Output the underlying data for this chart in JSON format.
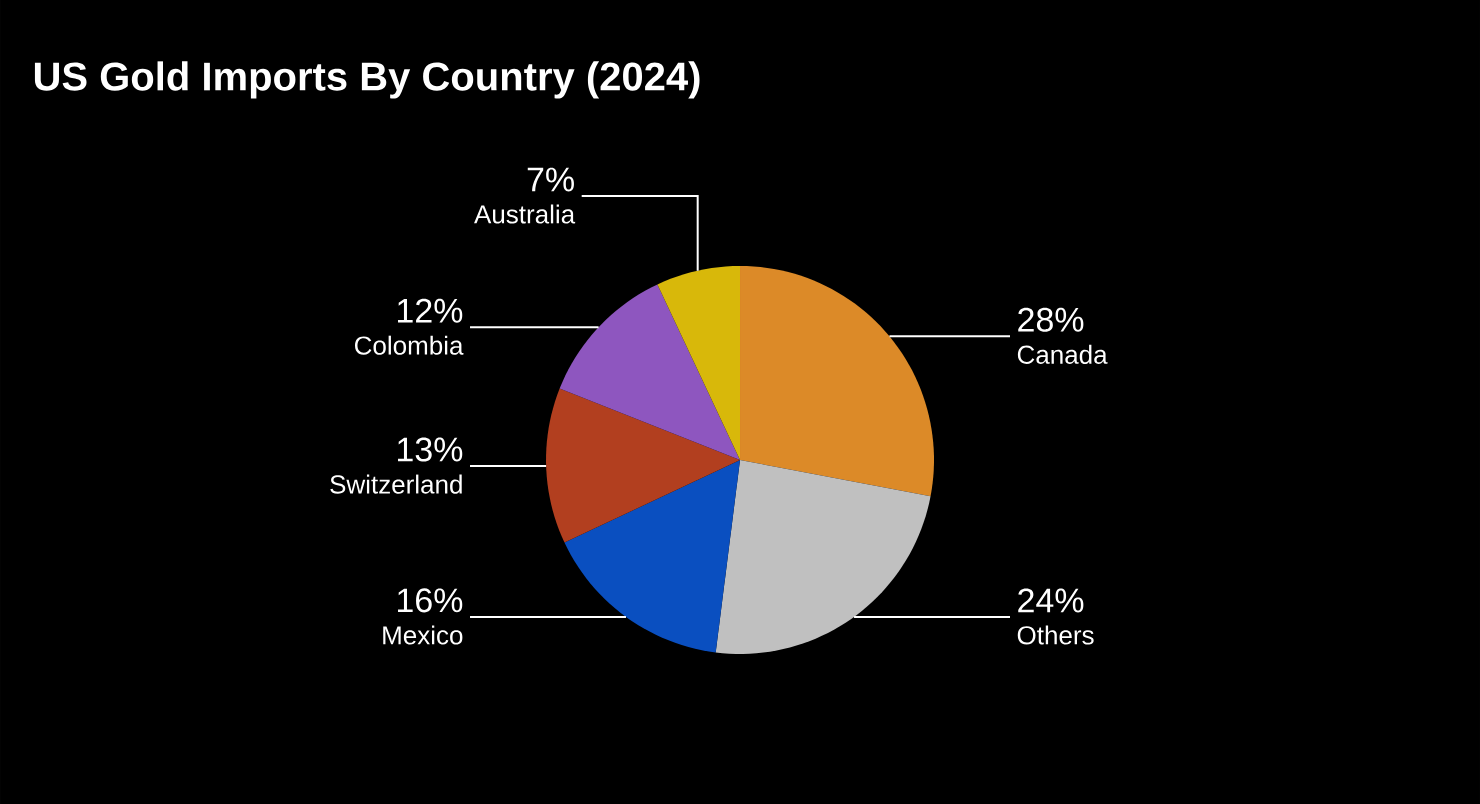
{
  "chart_data": {
    "type": "pie",
    "title": "US Gold Imports By Country (2024)",
    "categories": [
      "Canada",
      "Others",
      "Mexico",
      "Switzerland",
      "Colombia",
      "Australia"
    ],
    "values": [
      28,
      24,
      16,
      13,
      12,
      7
    ],
    "value_labels": [
      "28%",
      "24%",
      "16%",
      "13%",
      "12%",
      "7%"
    ],
    "colors": [
      "#dc8a28",
      "#c0c0c0",
      "#0a4fc0",
      "#b23f1f",
      "#8e56bf",
      "#d8b80a"
    ]
  }
}
